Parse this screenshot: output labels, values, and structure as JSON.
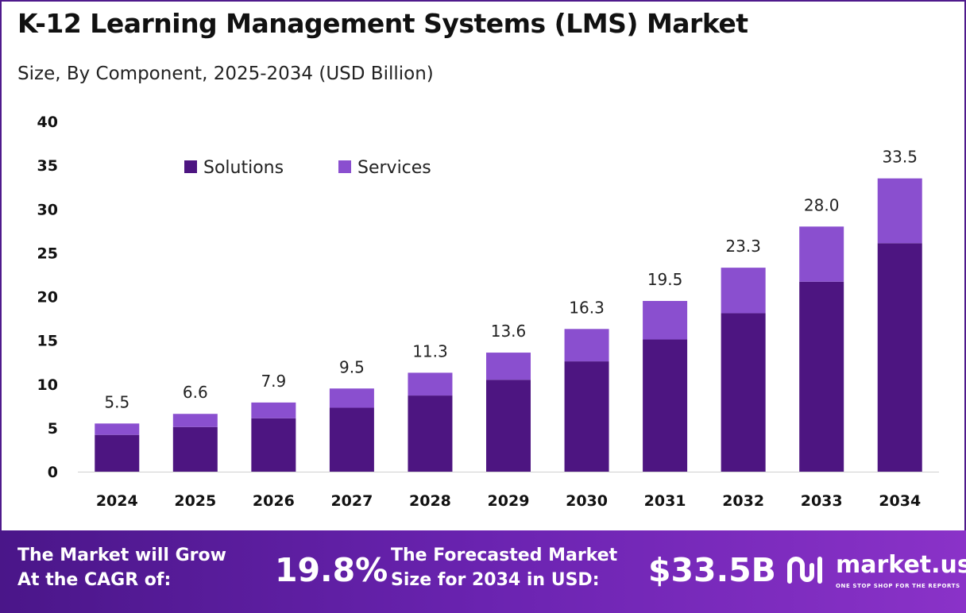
{
  "title": "K-12 Learning Management Systems (LMS) Market",
  "subtitle": "Size, By Component, 2025-2034 (USD Billion)",
  "colors": {
    "solutions": "#4d1581",
    "services": "#8a4fcf",
    "frame": "#4f1a8c"
  },
  "chart_data": {
    "type": "bar",
    "stacked": true,
    "categories": [
      "2024",
      "2025",
      "2026",
      "2027",
      "2028",
      "2029",
      "2030",
      "2031",
      "2032",
      "2033",
      "2034"
    ],
    "series": [
      {
        "name": "Solutions",
        "values": [
          4.2,
          5.1,
          6.1,
          7.3,
          8.7,
          10.5,
          12.6,
          15.1,
          18.1,
          21.7,
          26.1
        ]
      },
      {
        "name": "Services",
        "values": [
          1.3,
          1.5,
          1.8,
          2.2,
          2.6,
          3.1,
          3.7,
          4.4,
          5.2,
          6.3,
          7.4
        ]
      }
    ],
    "totals": [
      "5.5",
      "6.6",
      "7.9",
      "9.5",
      "11.3",
      "13.6",
      "16.3",
      "19.5",
      "23.3",
      "28.0",
      "33.5"
    ],
    "y_ticks": [
      "0",
      "5",
      "10",
      "15",
      "20",
      "25",
      "30",
      "35",
      "40"
    ],
    "ylim": [
      0,
      40
    ],
    "grid": false,
    "legend_position": "top-left"
  },
  "banner": {
    "cagr_label_line1": "The Market will Grow",
    "cagr_label_line2": "At the CAGR of:",
    "cagr_value": "19.8%",
    "forecast_label_line1": "The Forecasted Market",
    "forecast_label_line2": "Size for 2034 in USD:",
    "forecast_value": "$33.5B",
    "brand_name": "market.us",
    "brand_tagline": "ONE STOP SHOP FOR THE REPORTS",
    "logo_icon": "market-us-logo-icon"
  }
}
